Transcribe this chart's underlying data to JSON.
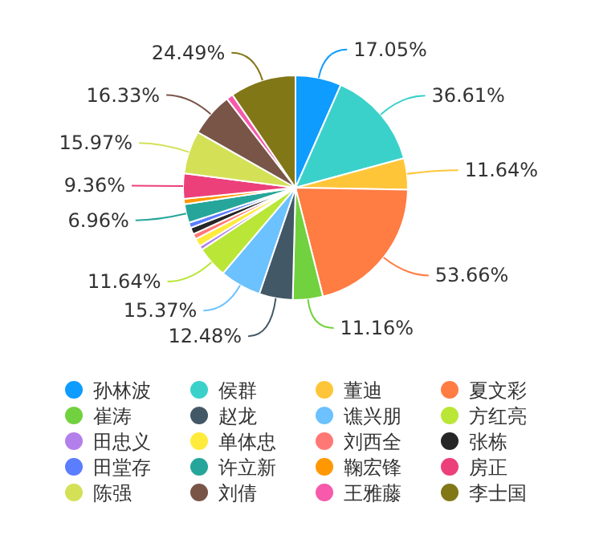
{
  "chart_data": {
    "type": "pie",
    "categories": [
      "孙林波",
      "侯群",
      "董迪",
      "夏文彩",
      "崔涛",
      "赵龙",
      "谯兴朋",
      "方红亮",
      "田忠义",
      "单体忠",
      "刘西全",
      "张栋",
      "田堂存",
      "许立新",
      "鞠宏锋",
      "房正",
      "陈强",
      "刘倩",
      "王雅藤",
      "李士国"
    ],
    "values": [
      17.05,
      36.61,
      11.64,
      53.66,
      11.16,
      12.48,
      15.37,
      11.64,
      1.5,
      3,
      2,
      2.5,
      2,
      6.96,
      2,
      9.36,
      15.97,
      16.33,
      2.5,
      24.49
    ],
    "value_labels": [
      "17.05%",
      "36.61%",
      "11.64%",
      "53.66%",
      "11.16%",
      "12.48%",
      "15.37%",
      "11.64%",
      null,
      null,
      null,
      null,
      null,
      "6.96%",
      null,
      "9.36%",
      "15.97%",
      "16.33%",
      null,
      "24.49%"
    ],
    "colors": [
      "#0e9cff",
      "#3bd1cb",
      "#ffc539",
      "#ff7c43",
      "#72d13e",
      "#435866",
      "#6cc1ff",
      "#bae637",
      "#b37feb",
      "#ffeb3b",
      "#ff7875",
      "#262626",
      "#5b7dff",
      "#26a69a",
      "#ff9800",
      "#ec407a",
      "#d4e157",
      "#795548",
      "#f759ab",
      "#827717"
    ],
    "legend": "bottom"
  }
}
